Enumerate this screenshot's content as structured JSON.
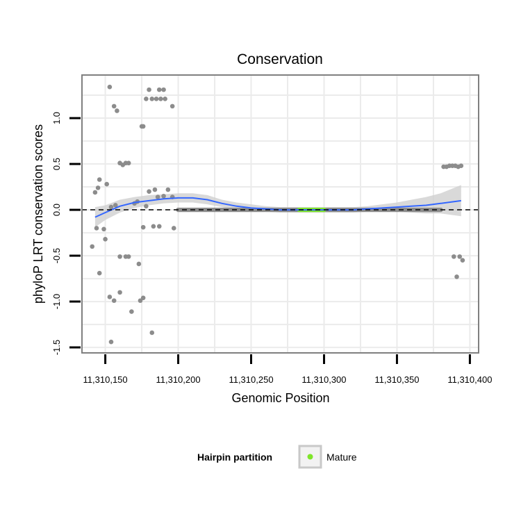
{
  "chart_data": {
    "type": "scatter",
    "title": "Conservation",
    "xlabel": "Genomic Position",
    "ylabel": "phyloP LRT conservation scores",
    "xlim": [
      11310134,
      11310406
    ],
    "ylim": [
      -1.56,
      1.47
    ],
    "x_ticks": [
      11310150,
      11310200,
      11310250,
      11310300,
      11310350,
      11310400
    ],
    "x_tick_labels": [
      "11,310,150",
      "11,310,200",
      "11,310,250",
      "11,310,300",
      "11,310,350",
      "11,310,400"
    ],
    "y_ticks": [
      -1.5,
      -1.0,
      -0.5,
      0.0,
      0.5,
      1.0
    ],
    "y_tick_labels": [
      "-1.5",
      "-1.0",
      "-0.5",
      "0.0",
      "0.5",
      "1.0"
    ],
    "reference_line_y": 0,
    "grid": true,
    "colors": {
      "points": "#8c8c8c",
      "mature": "#7fe52a",
      "smooth": "#3366ff",
      "band": "#d0d0d0",
      "panel_border": "#7f7f7f",
      "grid": "#ebebeb"
    },
    "points": [
      {
        "x": 11310153,
        "y": 1.34
      },
      {
        "x": 11310156,
        "y": 1.13
      },
      {
        "x": 11310158,
        "y": 1.08
      },
      {
        "x": 11310175,
        "y": 0.91
      },
      {
        "x": 11310176,
        "y": 0.91
      },
      {
        "x": 11310178,
        "y": 1.21
      },
      {
        "x": 11310180,
        "y": 1.31
      },
      {
        "x": 11310182,
        "y": 1.21
      },
      {
        "x": 11310185,
        "y": 1.21
      },
      {
        "x": 11310187,
        "y": 1.31
      },
      {
        "x": 11310188,
        "y": 1.21
      },
      {
        "x": 11310190,
        "y": 1.31
      },
      {
        "x": 11310191,
        "y": 1.21
      },
      {
        "x": 11310196,
        "y": 1.13
      },
      {
        "x": 11310160,
        "y": 0.51
      },
      {
        "x": 11310162,
        "y": 0.49
      },
      {
        "x": 11310164,
        "y": 0.51
      },
      {
        "x": 11310166,
        "y": 0.51
      },
      {
        "x": 11310146,
        "y": 0.33
      },
      {
        "x": 11310145,
        "y": 0.24
      },
      {
        "x": 11310143,
        "y": 0.19
      },
      {
        "x": 11310151,
        "y": 0.28
      },
      {
        "x": 11310157,
        "y": 0.05
      },
      {
        "x": 11310170,
        "y": 0.07
      },
      {
        "x": 11310172,
        "y": 0.09
      },
      {
        "x": 11310180,
        "y": 0.2
      },
      {
        "x": 11310184,
        "y": 0.22
      },
      {
        "x": 11310186,
        "y": 0.14
      },
      {
        "x": 11310190,
        "y": 0.15
      },
      {
        "x": 11310193,
        "y": 0.22
      },
      {
        "x": 11310196,
        "y": 0.14
      },
      {
        "x": 11310178,
        "y": 0.04
      },
      {
        "x": 11310144,
        "y": -0.2
      },
      {
        "x": 11310149,
        "y": -0.21
      },
      {
        "x": 11310154,
        "y": 0.03
      },
      {
        "x": 11310176,
        "y": -0.19
      },
      {
        "x": 11310183,
        "y": -0.18
      },
      {
        "x": 11310187,
        "y": -0.18
      },
      {
        "x": 11310197,
        "y": -0.2
      },
      {
        "x": 11310150,
        "y": -0.32
      },
      {
        "x": 11310141,
        "y": -0.4
      },
      {
        "x": 11310160,
        "y": -0.51
      },
      {
        "x": 11310164,
        "y": -0.51
      },
      {
        "x": 11310166,
        "y": -0.51
      },
      {
        "x": 11310173,
        "y": -0.59
      },
      {
        "x": 11310146,
        "y": -0.69
      },
      {
        "x": 11310160,
        "y": -0.9
      },
      {
        "x": 11310153,
        "y": -0.95
      },
      {
        "x": 11310156,
        "y": -0.99
      },
      {
        "x": 11310174,
        "y": -0.99
      },
      {
        "x": 11310176,
        "y": -0.96
      },
      {
        "x": 11310168,
        "y": -1.11
      },
      {
        "x": 11310182,
        "y": -1.34
      },
      {
        "x": 11310154,
        "y": -1.44
      },
      {
        "x": 11310382,
        "y": 0.47
      },
      {
        "x": 11310384,
        "y": 0.47
      },
      {
        "x": 11310386,
        "y": 0.48
      },
      {
        "x": 11310388,
        "y": 0.48
      },
      {
        "x": 11310390,
        "y": 0.48
      },
      {
        "x": 11310392,
        "y": 0.47
      },
      {
        "x": 11310394,
        "y": 0.48
      },
      {
        "x": 11310389,
        "y": -0.51
      },
      {
        "x": 11310393,
        "y": -0.51
      },
      {
        "x": 11310395,
        "y": -0.55
      },
      {
        "x": 11310391,
        "y": -0.73
      }
    ],
    "zero_line_points": {
      "x_start": 11310200,
      "x_end": 11310380,
      "step": 1,
      "y": 0
    },
    "mature_points": {
      "x_start": 11310283,
      "x_end": 11310300,
      "step": 1,
      "y": 0
    },
    "smooth_curve": [
      {
        "x": 11310143,
        "y": -0.08
      },
      {
        "x": 11310150,
        "y": -0.03
      },
      {
        "x": 11310160,
        "y": 0.04
      },
      {
        "x": 11310170,
        "y": 0.08
      },
      {
        "x": 11310180,
        "y": 0.1
      },
      {
        "x": 11310190,
        "y": 0.12
      },
      {
        "x": 11310200,
        "y": 0.13
      },
      {
        "x": 11310210,
        "y": 0.13
      },
      {
        "x": 11310220,
        "y": 0.11
      },
      {
        "x": 11310230,
        "y": 0.07
      },
      {
        "x": 11310240,
        "y": 0.04
      },
      {
        "x": 11310250,
        "y": 0.02
      },
      {
        "x": 11310260,
        "y": 0.01
      },
      {
        "x": 11310270,
        "y": 0.0
      },
      {
        "x": 11310280,
        "y": 0.0
      },
      {
        "x": 11310290,
        "y": 0.0
      },
      {
        "x": 11310300,
        "y": 0.0
      },
      {
        "x": 11310310,
        "y": 0.0
      },
      {
        "x": 11310320,
        "y": 0.0
      },
      {
        "x": 11310330,
        "y": 0.01
      },
      {
        "x": 11310340,
        "y": 0.02
      },
      {
        "x": 11310350,
        "y": 0.03
      },
      {
        "x": 11310360,
        "y": 0.04
      },
      {
        "x": 11310370,
        "y": 0.05
      },
      {
        "x": 11310380,
        "y": 0.07
      },
      {
        "x": 11310394,
        "y": 0.1
      }
    ],
    "ci_band": [
      {
        "x": 11310143,
        "lo": -0.19,
        "hi": 0.03
      },
      {
        "x": 11310150,
        "lo": -0.11,
        "hi": 0.05
      },
      {
        "x": 11310160,
        "lo": -0.03,
        "hi": 0.11
      },
      {
        "x": 11310170,
        "lo": 0.02,
        "hi": 0.14
      },
      {
        "x": 11310180,
        "lo": 0.05,
        "hi": 0.16
      },
      {
        "x": 11310190,
        "lo": 0.07,
        "hi": 0.17
      },
      {
        "x": 11310200,
        "lo": 0.08,
        "hi": 0.18
      },
      {
        "x": 11310210,
        "lo": 0.08,
        "hi": 0.18
      },
      {
        "x": 11310220,
        "lo": 0.06,
        "hi": 0.16
      },
      {
        "x": 11310230,
        "lo": 0.03,
        "hi": 0.11
      },
      {
        "x": 11310240,
        "lo": 0.0,
        "hi": 0.08
      },
      {
        "x": 11310250,
        "lo": -0.02,
        "hi": 0.06
      },
      {
        "x": 11310260,
        "lo": -0.02,
        "hi": 0.04
      },
      {
        "x": 11310270,
        "lo": -0.03,
        "hi": 0.03
      },
      {
        "x": 11310280,
        "lo": -0.03,
        "hi": 0.03
      },
      {
        "x": 11310290,
        "lo": -0.03,
        "hi": 0.03
      },
      {
        "x": 11310300,
        "lo": -0.03,
        "hi": 0.03
      },
      {
        "x": 11310310,
        "lo": -0.03,
        "hi": 0.03
      },
      {
        "x": 11310320,
        "lo": -0.03,
        "hi": 0.03
      },
      {
        "x": 11310330,
        "lo": -0.02,
        "hi": 0.04
      },
      {
        "x": 11310340,
        "lo": -0.02,
        "hi": 0.06
      },
      {
        "x": 11310350,
        "lo": -0.02,
        "hi": 0.08
      },
      {
        "x": 11310360,
        "lo": -0.03,
        "hi": 0.11
      },
      {
        "x": 11310370,
        "lo": -0.04,
        "hi": 0.14
      },
      {
        "x": 11310380,
        "lo": -0.04,
        "hi": 0.18
      },
      {
        "x": 11310394,
        "lo": -0.07,
        "hi": 0.27
      }
    ],
    "legend": {
      "title": "Hairpin partition",
      "items": [
        {
          "label": "Mature",
          "color": "#7fe52a"
        }
      ],
      "position": "bottom"
    }
  }
}
